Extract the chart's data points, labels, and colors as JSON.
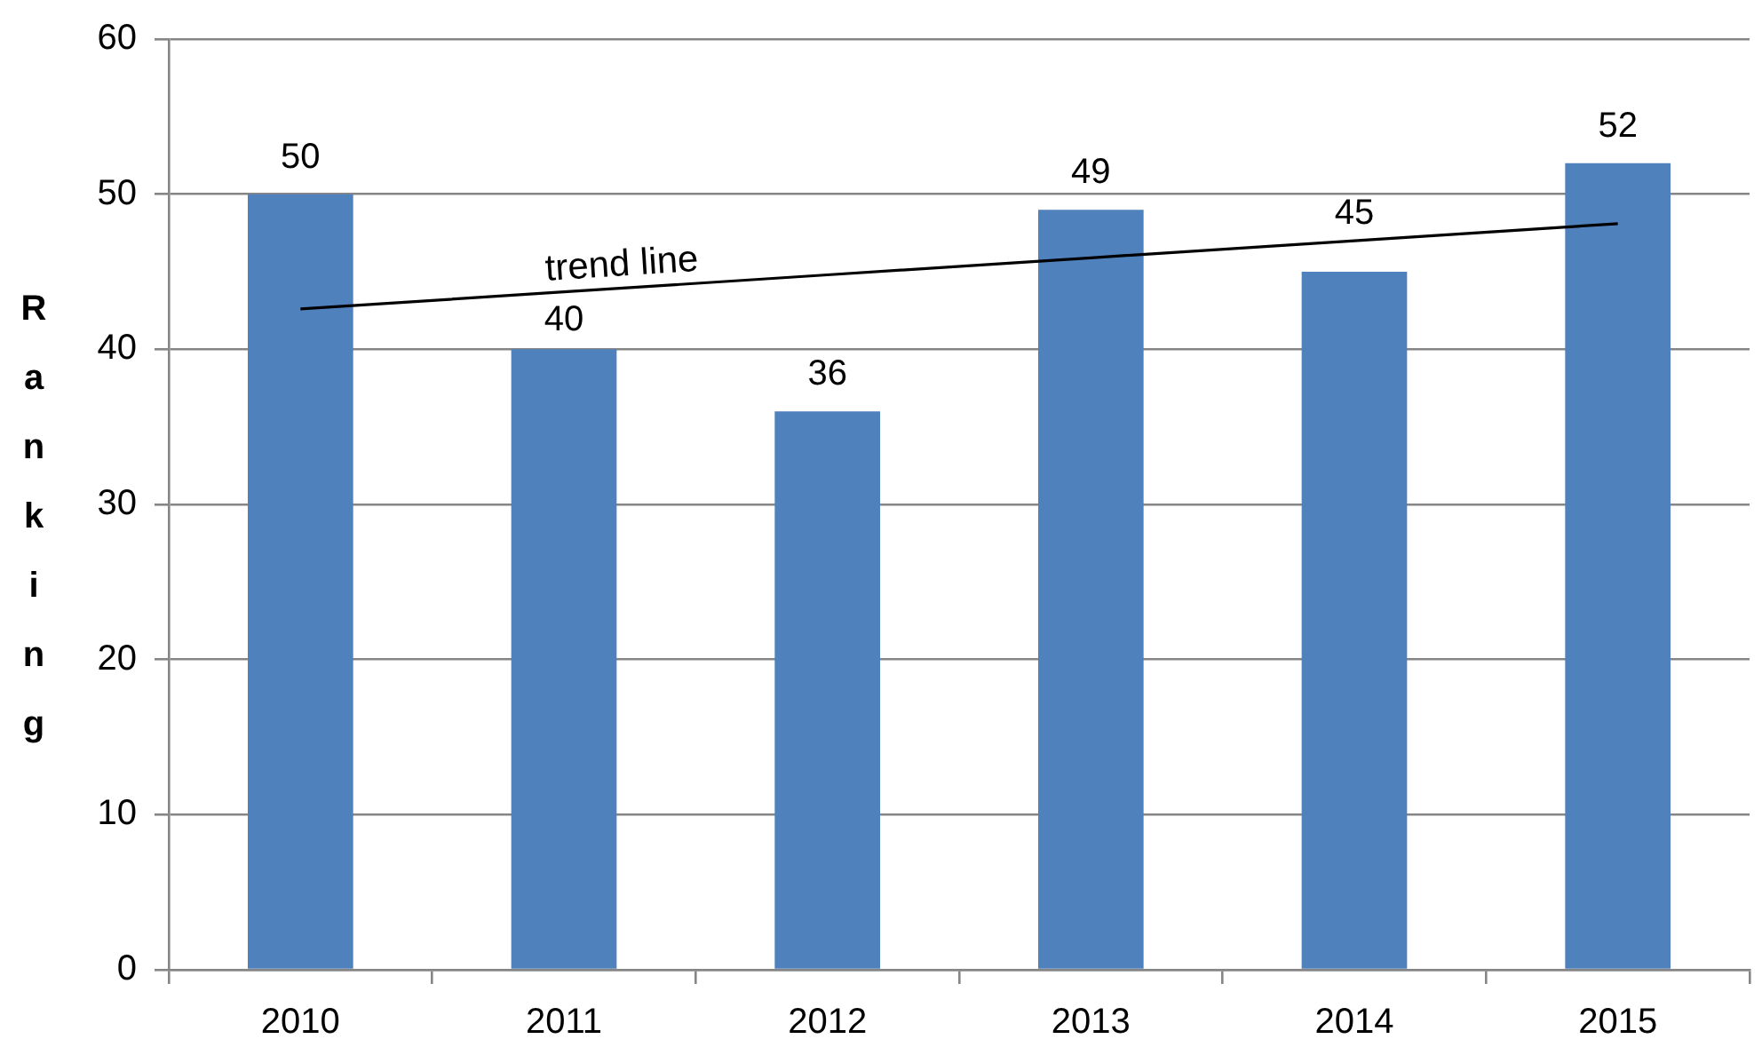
{
  "chart_data": {
    "type": "bar",
    "categories": [
      "2010",
      "2011",
      "2012",
      "2013",
      "2014",
      "2015"
    ],
    "series": [
      {
        "color": "#4f81bd",
        "values": [
          50,
          40,
          36,
          49,
          45,
          52
        ],
        "value_labels": [
          "50",
          "40",
          "36",
          "49",
          "45",
          "52"
        ]
      },
      {
        "type": "line",
        "color": "#000000",
        "values": [
          42.6,
          43.7,
          44.8,
          45.9,
          47.0,
          48.1
        ],
        "line_style": "solid"
      }
    ],
    "ylabel": "Ranking",
    "ylim": [
      0,
      60
    ],
    "yticks": [
      0,
      10,
      20,
      30,
      40,
      50,
      60
    ],
    "grid": "y",
    "marker": "none",
    "annotations": [
      "trend line"
    ]
  }
}
